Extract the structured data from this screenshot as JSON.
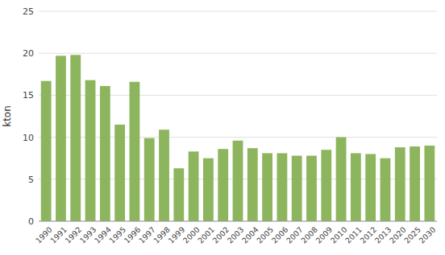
{
  "chart_data": {
    "type": "bar",
    "categories": [
      "1990",
      "1991",
      "1992",
      "1993",
      "1994",
      "1995",
      "1996",
      "1997",
      "1998",
      "1999",
      "2000",
      "2001",
      "2002",
      "2003",
      "2004",
      "2005",
      "2006",
      "2007",
      "2008",
      "2009",
      "2010",
      "2011",
      "2012",
      "2013",
      "2020",
      "2025",
      "2030"
    ],
    "values": [
      16.7,
      19.7,
      19.8,
      16.8,
      16.1,
      11.5,
      16.6,
      9.9,
      10.9,
      6.3,
      8.3,
      7.5,
      8.6,
      9.6,
      8.7,
      8.1,
      8.1,
      7.8,
      7.8,
      8.5,
      10.0,
      8.1,
      8.0,
      7.5,
      8.8,
      8.9,
      9.0
    ],
    "color": "#8db55e",
    "ylabel": "kton",
    "ylim": [
      0,
      25
    ],
    "yticks": [
      0,
      5,
      10,
      15,
      20,
      25
    ],
    "grid": true
  }
}
